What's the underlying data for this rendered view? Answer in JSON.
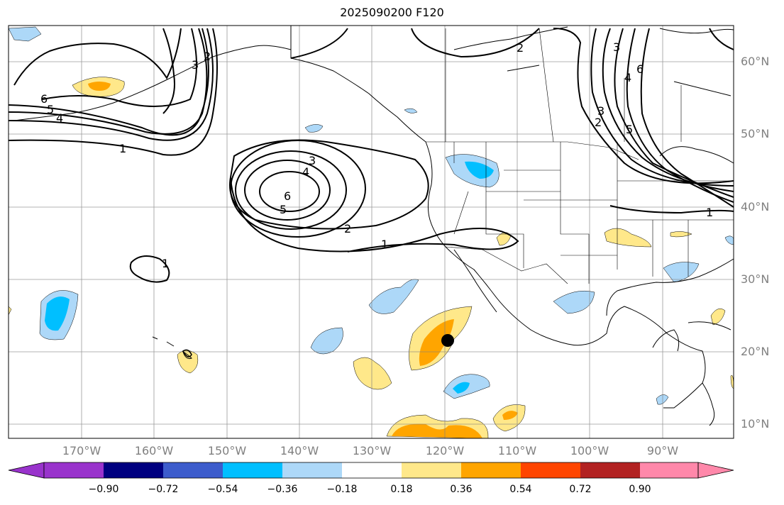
{
  "title": "2025090200 F120",
  "lat_labels": [
    "60°N",
    "50°N",
    "40°N",
    "30°N",
    "20°N",
    "10°N"
  ],
  "lon_labels": [
    "170°W",
    "160°W",
    "150°W",
    "140°W",
    "130°W",
    "120°W",
    "110°W",
    "100°W",
    "90°W"
  ],
  "colorbar": {
    "ticks": [
      "−0.90",
      "−0.72",
      "−0.54",
      "−0.36",
      "−0.18",
      "0.18",
      "0.36",
      "0.54",
      "0.72",
      "0.90"
    ],
    "colors": [
      "#9933cc",
      "#000080",
      "#3c5ccc",
      "#00bfff",
      "#add8f8",
      "#ffffff",
      "#ffe88a",
      "#ffa500",
      "#ff4500",
      "#b22222",
      "#ff88aa"
    ]
  },
  "contour_labels": [
    "6",
    "5",
    "4",
    "1",
    "3",
    "2",
    "6",
    "5",
    "4",
    "3",
    "2",
    "1",
    "1",
    "2",
    "3",
    "6",
    "4",
    "5",
    "1",
    "2",
    "3"
  ],
  "marker": {
    "lat": 21.8,
    "lon": -119.8
  },
  "map_colors": {
    "land_border": "#000000",
    "grid": "#808080"
  }
}
